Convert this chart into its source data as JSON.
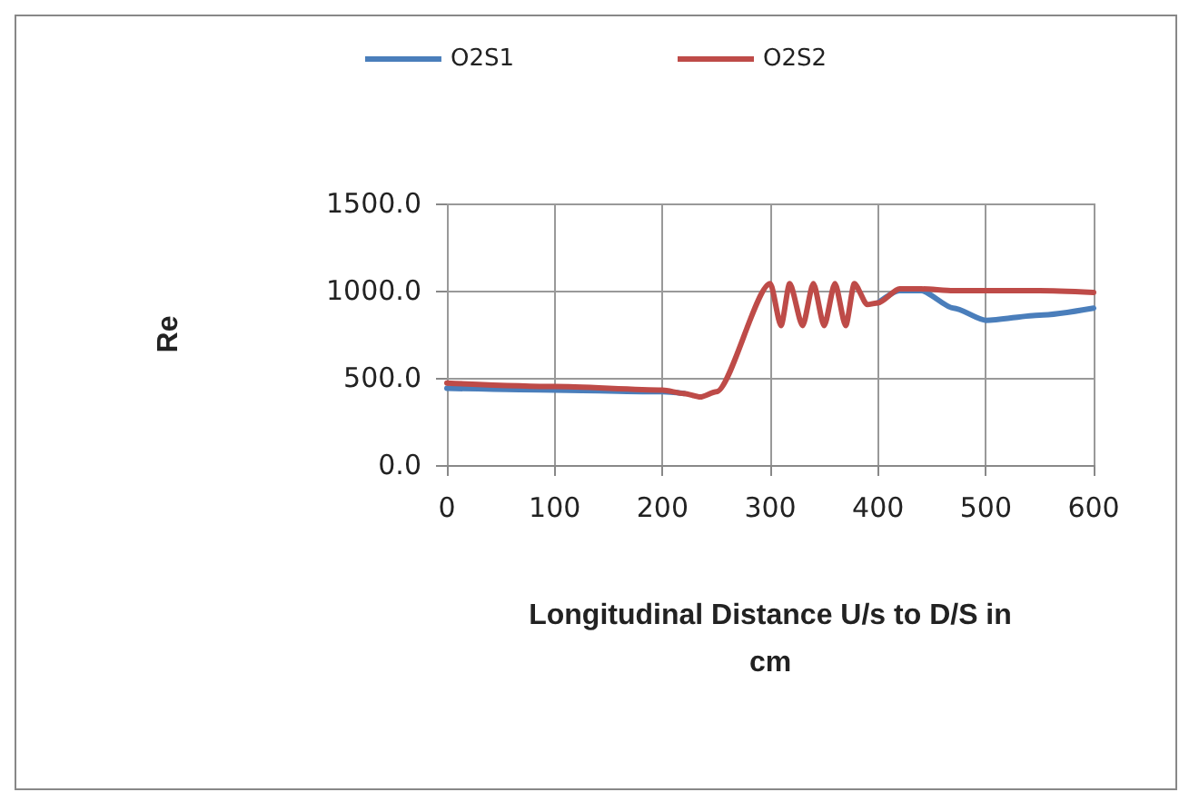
{
  "chart_data": {
    "type": "line",
    "xlabel": "Longitudinal Distance U/s to D/S in\ncm",
    "ylabel": "Re",
    "x": [
      0,
      100,
      200,
      220,
      235,
      250,
      300,
      310,
      318,
      330,
      340,
      350,
      360,
      370,
      378,
      390,
      400,
      420,
      440,
      470,
      500,
      550,
      600
    ],
    "series": [
      {
        "name": "O2S1",
        "color": "#4a7ebb",
        "values": [
          440,
          430,
          420,
          410,
          null,
          null,
          null,
          null,
          null,
          null,
          null,
          null,
          null,
          null,
          null,
          null,
          930,
          1000,
          1000,
          900,
          830,
          860,
          900
        ]
      },
      {
        "name": "O2S2",
        "color": "#be4b48",
        "values": [
          470,
          450,
          430,
          410,
          390,
          420,
          1040,
          800,
          1040,
          800,
          1040,
          800,
          1040,
          800,
          1040,
          920,
          930,
          1010,
          1010,
          1000,
          1000,
          1000,
          990
        ]
      }
    ],
    "xlim": [
      0,
      600
    ],
    "xticks": [
      0,
      100,
      200,
      300,
      400,
      500,
      600
    ],
    "ylim": [
      0,
      1500
    ],
    "yticks": [
      {
        "value": 0,
        "label": "0.0"
      },
      {
        "value": 500,
        "label": "500.0"
      },
      {
        "value": 1000,
        "label": "1000.0"
      },
      {
        "value": 1500,
        "label": "1500.0"
      }
    ],
    "grid": true,
    "legend": "top",
    "marker": "none",
    "line_style": "solid"
  }
}
